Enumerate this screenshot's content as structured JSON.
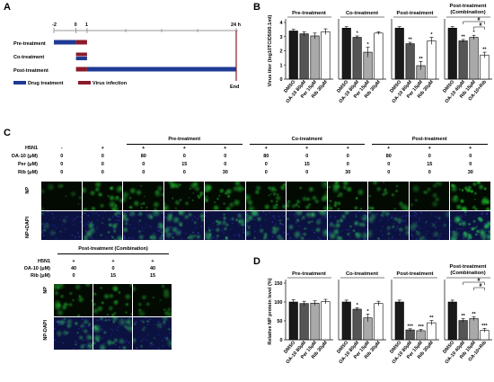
{
  "panels": {
    "A": "A",
    "B": "B",
    "C": "C",
    "D": "D"
  },
  "timeline": {
    "ticks": [
      "-2",
      "0",
      "1",
      "24 h"
    ],
    "end_label": "End",
    "rows": [
      {
        "label": "Pre-treatment",
        "segments": [
          {
            "from": -2,
            "to": 0,
            "kind": "drug"
          },
          {
            "from": 0,
            "to": 1,
            "kind": "virus"
          }
        ]
      },
      {
        "label": "Co-treatment",
        "segments": [
          {
            "from": 0,
            "to": 1,
            "kind": "virus"
          },
          {
            "from": 0,
            "to": 1,
            "kind": "drug",
            "stacked": true
          }
        ]
      },
      {
        "label": "Post-treatment",
        "segments": [
          {
            "from": 0,
            "to": 1,
            "kind": "virus"
          },
          {
            "from": 1,
            "to": 24,
            "kind": "drug"
          }
        ]
      }
    ],
    "legend": [
      {
        "label": "Drug treatment",
        "color": "#1f3a93"
      },
      {
        "label": "Virus infection",
        "color": "#8b1a2b"
      }
    ]
  },
  "colors": {
    "drug": "#1f3a93",
    "virus": "#8b1a2b",
    "black": "#1a1a1a",
    "dgray": "#555555",
    "lgray": "#a9a9a9",
    "white": "#ffffff"
  },
  "chart_data": [
    {
      "type": "bar",
      "panel": "B",
      "ylabel": "Virus titer (log10TCID50/0.1ml)",
      "ylim": [
        0,
        4
      ],
      "yticks": [
        "0",
        "1",
        "2",
        "3",
        "4"
      ],
      "groups": [
        {
          "title": "Pre-treatment",
          "categories": [
            "DMSO",
            "OA-10 80μM",
            "Per 15μM",
            "Rib 30μM"
          ],
          "values": [
            3.4,
            3.2,
            3.05,
            3.35
          ],
          "errors": [
            0.12,
            0.15,
            0.2,
            0.2
          ],
          "sig": [
            "",
            "",
            "",
            ""
          ]
        },
        {
          "title": "Co-treatment",
          "categories": [
            "DMSO",
            "OA-10 80μM",
            "Per 15μM",
            "Rib 30μM"
          ],
          "values": [
            3.6,
            2.95,
            1.9,
            3.25
          ],
          "errors": [
            0.1,
            0.1,
            0.35,
            0.1
          ],
          "sig": [
            "",
            "*",
            "*",
            ""
          ]
        },
        {
          "title": "Post-treatment",
          "categories": [
            "DMSO",
            "OA-10 80μM",
            "Per 15μM",
            "Rib 30μM"
          ],
          "values": [
            3.6,
            2.5,
            0.95,
            2.7
          ],
          "errors": [
            0.1,
            0.1,
            0.3,
            0.25
          ],
          "sig": [
            "",
            "**",
            "**",
            "*"
          ]
        },
        {
          "title": "Post-treatment (Combination)",
          "categories": [
            "DMSO",
            "OA-10 40μM",
            "Rib 15μM",
            "OA-10+Rib"
          ],
          "values": [
            3.6,
            2.7,
            2.95,
            1.7
          ],
          "errors": [
            0.1,
            0.1,
            0.15,
            0.2
          ],
          "sig": [
            "",
            "**",
            "*",
            "**"
          ],
          "bracket": "#"
        }
      ]
    },
    {
      "type": "bar",
      "panel": "D",
      "ylabel": "Relative NP protein level (%)",
      "ylim": [
        0,
        150
      ],
      "yticks": [
        "0",
        "50",
        "100",
        "150"
      ],
      "groups": [
        {
          "title": "Pre-treatment",
          "categories": [
            "DMSO",
            "OA-10 80μM",
            "Per 15μM",
            "Rib 30μM"
          ],
          "values": [
            100,
            96,
            97,
            101
          ],
          "errors": [
            6,
            6,
            6,
            6
          ],
          "sig": [
            "",
            "",
            "",
            ""
          ]
        },
        {
          "title": "Co-treatment",
          "categories": [
            "DMSO",
            "OA-10 80μM",
            "Per 15μM",
            "Rib 30μM"
          ],
          "values": [
            100,
            81,
            58,
            96
          ],
          "errors": [
            5,
            4,
            10,
            6
          ],
          "sig": [
            "",
            "*",
            "*",
            ""
          ]
        },
        {
          "title": "Post-treatment",
          "categories": [
            "DMSO",
            "OA-10 80μM",
            "Per 15μM",
            "Rib 30μM"
          ],
          "values": [
            100,
            26,
            24,
            45
          ],
          "errors": [
            5,
            3,
            3,
            6
          ],
          "sig": [
            "",
            "***",
            "***",
            "**"
          ]
        },
        {
          "title": "Post-treatment (Combination)",
          "categories": [
            "DMSO",
            "OA-10 40μM",
            "Rib 15μM",
            "OA-10+Rib"
          ],
          "values": [
            100,
            51,
            56,
            25
          ],
          "errors": [
            5,
            5,
            5,
            5
          ],
          "sig": [
            "",
            "**",
            "**",
            "***"
          ],
          "bracket": "#"
        }
      ]
    }
  ],
  "microscopy_top": {
    "row_params": [
      {
        "label": "H5N1",
        "values": [
          "-",
          "+",
          "+",
          "+",
          "+",
          "+",
          "+",
          "+",
          "+",
          "+",
          "+"
        ]
      },
      {
        "label": "OA-10 (μM)",
        "values": [
          "0",
          "0",
          "80",
          "0",
          "0",
          "80",
          "0",
          "0",
          "80",
          "0",
          "0"
        ]
      },
      {
        "label": "Per (μM)",
        "values": [
          "0",
          "0",
          "0",
          "15",
          "0",
          "0",
          "15",
          "0",
          "0",
          "15",
          "0"
        ]
      },
      {
        "label": "Rib (μM)",
        "values": [
          "0",
          "0",
          "0",
          "0",
          "30",
          "0",
          "0",
          "30",
          "0",
          "0",
          "30"
        ]
      }
    ],
    "group_titles": [
      "Pre-treatment",
      "Co-treatment",
      "Post-treatment"
    ],
    "image_rows": [
      "NP",
      "NP+DAPI"
    ]
  },
  "microscopy_bottom": {
    "title": "Post-treatment (Combination)",
    "row_params": [
      {
        "label": "H5N1",
        "values": [
          "+",
          "+",
          "+"
        ]
      },
      {
        "label": "OA-10 (μM)",
        "values": [
          "40",
          "0",
          "40"
        ]
      },
      {
        "label": "Rib (μM)",
        "values": [
          "0",
          "15",
          "15"
        ]
      }
    ],
    "image_rows": [
      "NP",
      "NP-DAPI"
    ]
  }
}
